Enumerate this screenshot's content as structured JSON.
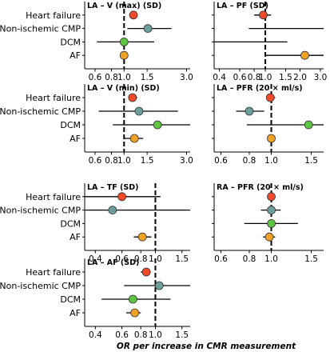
{
  "x_axis_title": "OR per increase in CMR measurement",
  "colors": {
    "Heart failure": "#f04a2a",
    "Non-ischemic CMP": "#6b9e9c",
    "DCM": "#5cc541",
    "AF": "#f0a226"
  },
  "chart_data": [
    {
      "type": "forest",
      "title": "LA – V (max) (SD)",
      "rows": [
        "Heart failure",
        "Non-ischemic CMP",
        "DCM",
        "AF"
      ],
      "xscale": "log",
      "xlim": [
        0.5,
        3.2
      ],
      "ticks": [
        0.6,
        0.8,
        1.0,
        1.5,
        3.0
      ],
      "tick_labels": [
        "0.6",
        "0.8",
        "1.0",
        "1.5",
        "3.0"
      ],
      "reference": 1.0,
      "or": [
        1.18,
        1.52,
        1.0,
        1.0
      ],
      "lower": [
        1.1,
        1.06,
        0.62,
        0.94
      ],
      "upper": [
        1.27,
        2.3,
        1.7,
        1.06
      ]
    },
    {
      "type": "forest",
      "title": "LA – PF (SD)",
      "rows": [
        "Heart failure",
        "Non-ischemic CMP",
        "DCM",
        "AF"
      ],
      "xscale": "log",
      "xlim": [
        0.36,
        3.2
      ],
      "ticks": [
        0.4,
        0.6,
        0.8,
        1.0,
        1.5,
        2.0,
        3.0
      ],
      "tick_labels": [
        "0.4",
        "0.6",
        "0.8",
        "1.0",
        "1.5",
        "2.0",
        "3.0"
      ],
      "reference": 1.0,
      "or": [
        0.96,
        null,
        null,
        2.2
      ],
      "lower": [
        0.8,
        0.72,
        0.36,
        1.0
      ],
      "upper": [
        1.12,
        3.2,
        1.55,
        3.2
      ]
    },
    {
      "type": "forest",
      "title": "LA – V (min) (SD)",
      "rows": [
        "Heart failure",
        "Non-ischemic CMP",
        "DCM",
        "AF"
      ],
      "xscale": "log",
      "xlim": [
        0.5,
        3.2
      ],
      "ticks": [
        0.6,
        0.8,
        1.0,
        1.5,
        3.0
      ],
      "tick_labels": [
        "0.6",
        "0.8",
        "1.0",
        "1.5",
        "3.0"
      ],
      "reference": 1.0,
      "or": [
        1.16,
        1.3,
        1.8,
        1.2
      ],
      "lower": [
        1.08,
        0.64,
        0.82,
        1.0
      ],
      "upper": [
        1.26,
        2.58,
        3.2,
        1.4
      ]
    },
    {
      "type": "forest",
      "title": "LA – PFR (20 × ml/s)",
      "rows": [
        "Heart failure",
        "Non-ischemic CMP",
        "DCM",
        "AF"
      ],
      "xscale": "log",
      "xlim": [
        0.56,
        1.7
      ],
      "ticks": [
        0.6,
        0.8,
        1.0,
        1.5
      ],
      "tick_labels": [
        "0.6",
        "0.8",
        "1.0",
        "1.5"
      ],
      "reference": 1.0,
      "or": [
        0.99,
        0.8,
        1.46,
        1.0
      ],
      "lower": [
        0.95,
        0.7,
        0.78,
        0.96
      ],
      "upper": [
        1.04,
        0.93,
        1.7,
        1.04
      ]
    },
    {
      "type": "forest",
      "title": "LA – TF (SD)",
      "rows": [
        "Heart failure",
        "Non-ischemic CMP",
        "DCM",
        "AF"
      ],
      "xscale": "log",
      "xlim": [
        0.34,
        1.7
      ],
      "ticks": [
        0.4,
        0.6,
        0.8,
        1.0,
        1.5
      ],
      "tick_labels": [
        "0.4",
        "0.6",
        "0.8",
        "1.0",
        "1.5"
      ],
      "reference": 1.0,
      "or": [
        0.6,
        0.52,
        null,
        0.82
      ],
      "lower": [
        0.34,
        0.34,
        null,
        0.72
      ],
      "upper": [
        1.08,
        1.7,
        null,
        0.94
      ]
    },
    {
      "type": "forest",
      "title": "RA – PFR (20 × ml/s)",
      "rows": [
        "Heart failure",
        "Non-ischemic CMP",
        "DCM",
        "AF"
      ],
      "xscale": "log",
      "xlim": [
        0.56,
        1.7
      ],
      "ticks": [
        0.6,
        0.8,
        1.0,
        1.5
      ],
      "tick_labels": [
        "0.6",
        "0.8",
        "1.0",
        "1.5"
      ],
      "reference": 1.0,
      "or": [
        1.0,
        1.0,
        1.0,
        0.98
      ],
      "lower": [
        0.97,
        0.9,
        0.76,
        0.92
      ],
      "upper": [
        1.03,
        1.1,
        1.31,
        1.04
      ]
    },
    {
      "type": "forest",
      "title": "LA – AF (SD)",
      "rows": [
        "Heart failure",
        "Non-ischemic CMP",
        "DCM",
        "AF"
      ],
      "xscale": "log",
      "xlim": [
        0.34,
        1.7
      ],
      "ticks": [
        0.4,
        0.6,
        0.8,
        1.0,
        1.5
      ],
      "tick_labels": [
        "0.4",
        "0.6",
        "0.8",
        "1.0",
        "1.5"
      ],
      "reference": 1.0,
      "or": [
        0.87,
        1.06,
        0.71,
        0.73
      ],
      "lower": [
        0.8,
        0.62,
        0.44,
        0.64
      ],
      "upper": [
        0.93,
        1.7,
        1.26,
        0.8
      ]
    }
  ]
}
